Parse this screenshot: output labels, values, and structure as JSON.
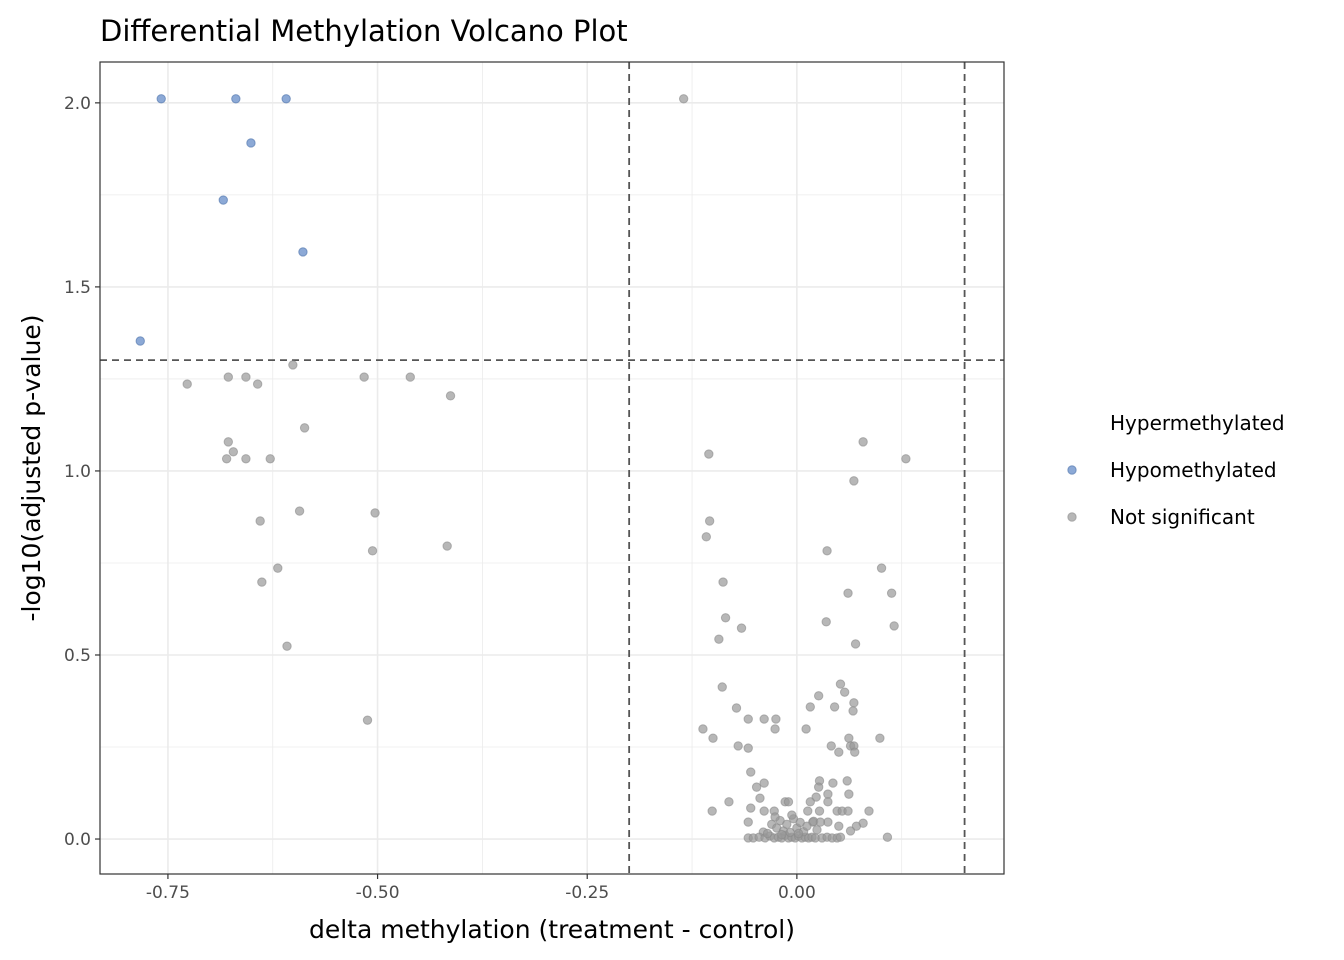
{
  "chart_data": {
    "type": "scatter",
    "title": "Differential Methylation Volcano Plot",
    "xlabel": "delta methylation (treatment - control)",
    "ylabel": "-log10(adjusted p-value)",
    "xlim": [
      -0.831,
      0.247
    ],
    "ylim": [
      -0.095,
      2.111
    ],
    "xticks": [
      -0.75,
      -0.5,
      -0.25,
      0.0
    ],
    "xtick_labels": [
      "-0.75",
      "-0.50",
      "-0.25",
      "0.00"
    ],
    "yticks": [
      0.0,
      0.5,
      1.0,
      1.5,
      2.0
    ],
    "ytick_labels": [
      "0.0",
      "0.5",
      "1.0",
      "1.5",
      "2.0"
    ],
    "grid": true,
    "legend_placement": "right",
    "thresholds": {
      "vlines": [
        -0.2,
        0.2
      ],
      "hline": 1.301
    },
    "series": [
      {
        "name": "Hypermethylated",
        "color": "#d6604d",
        "points": []
      },
      {
        "name": "Hypomethylated",
        "color": "#5b84c4",
        "points": [
          [
            -0.758,
            2.011
          ],
          [
            -0.669,
            2.011
          ],
          [
            -0.609,
            2.011
          ],
          [
            -0.651,
            1.891
          ],
          [
            -0.684,
            1.736
          ],
          [
            -0.589,
            1.595
          ],
          [
            -0.783,
            1.353
          ]
        ]
      },
      {
        "name": "Not significant",
        "color": "#999999",
        "points": [
          [
            -0.135,
            2.011
          ],
          [
            -0.727,
            1.236
          ],
          [
            -0.678,
            1.255
          ],
          [
            -0.657,
            1.255
          ],
          [
            -0.643,
            1.236
          ],
          [
            -0.601,
            1.288
          ],
          [
            -0.516,
            1.255
          ],
          [
            -0.461,
            1.255
          ],
          [
            -0.413,
            1.204
          ],
          [
            -0.587,
            1.117
          ],
          [
            -0.678,
            1.079
          ],
          [
            -0.672,
            1.052
          ],
          [
            -0.68,
            1.033
          ],
          [
            -0.657,
            1.033
          ],
          [
            -0.628,
            1.033
          ],
          [
            -0.64,
            0.864
          ],
          [
            -0.593,
            0.891
          ],
          [
            -0.503,
            0.886
          ],
          [
            -0.506,
            0.783
          ],
          [
            -0.417,
            0.796
          ],
          [
            -0.619,
            0.736
          ],
          [
            -0.638,
            0.698
          ],
          [
            -0.608,
            0.524
          ],
          [
            -0.512,
            0.323
          ],
          [
            -0.105,
            1.046
          ],
          [
            -0.104,
            0.864
          ],
          [
            -0.108,
            0.821
          ],
          [
            -0.088,
            0.698
          ],
          [
            -0.085,
            0.601
          ],
          [
            -0.093,
            0.543
          ],
          [
            -0.066,
            0.573
          ],
          [
            0.079,
            1.079
          ],
          [
            0.13,
            1.033
          ],
          [
            0.068,
            0.973
          ],
          [
            0.036,
            0.783
          ],
          [
            0.101,
            0.736
          ],
          [
            0.061,
            0.668
          ],
          [
            0.113,
            0.668
          ],
          [
            0.035,
            0.59
          ],
          [
            0.116,
            0.579
          ],
          [
            0.07,
            0.53
          ],
          [
            -0.089,
            0.413
          ],
          [
            -0.072,
            0.356
          ],
          [
            -0.058,
            0.326
          ],
          [
            -0.039,
            0.326
          ],
          [
            -0.025,
            0.326
          ],
          [
            -0.026,
            0.299
          ],
          [
            -0.112,
            0.299
          ],
          [
            -0.1,
            0.274
          ],
          [
            -0.07,
            0.253
          ],
          [
            -0.058,
            0.247
          ],
          [
            -0.055,
            0.182
          ],
          [
            -0.048,
            0.141
          ],
          [
            -0.039,
            0.152
          ],
          [
            -0.044,
            0.111
          ],
          [
            -0.081,
            0.101
          ],
          [
            -0.101,
            0.076
          ],
          [
            -0.055,
            0.084
          ],
          [
            -0.039,
            0.076
          ],
          [
            -0.027,
            0.076
          ],
          [
            -0.014,
            0.101
          ],
          [
            -0.01,
            0.101
          ],
          [
            -0.058,
            0.046
          ],
          [
            -0.04,
            0.019
          ],
          [
            0.052,
            0.421
          ],
          [
            0.057,
            0.399
          ],
          [
            0.026,
            0.389
          ],
          [
            0.068,
            0.37
          ],
          [
            0.067,
            0.348
          ],
          [
            0.016,
            0.359
          ],
          [
            0.045,
            0.359
          ],
          [
            0.011,
            0.299
          ],
          [
            0.099,
            0.274
          ],
          [
            0.062,
            0.274
          ],
          [
            0.041,
            0.253
          ],
          [
            0.05,
            0.236
          ],
          [
            0.064,
            0.253
          ],
          [
            0.068,
            0.253
          ],
          [
            0.069,
            0.236
          ],
          [
            0.027,
            0.158
          ],
          [
            0.026,
            0.141
          ],
          [
            0.043,
            0.152
          ],
          [
            0.06,
            0.158
          ],
          [
            0.023,
            0.114
          ],
          [
            0.037,
            0.122
          ],
          [
            0.062,
            0.122
          ],
          [
            0.037,
            0.101
          ],
          [
            0.016,
            0.101
          ],
          [
            0.013,
            0.076
          ],
          [
            0.027,
            0.076
          ],
          [
            0.048,
            0.076
          ],
          [
            0.054,
            0.076
          ],
          [
            0.061,
            0.076
          ],
          [
            0.086,
            0.076
          ],
          [
            0.019,
            0.046
          ],
          [
            0.037,
            0.046
          ],
          [
            0.05,
            0.035
          ],
          [
            0.079,
            0.043
          ],
          [
            0.071,
            0.035
          ],
          [
            0.064,
            0.022
          ],
          [
            0.108,
            0.005
          ],
          [
            -0.058,
            0.003
          ],
          [
            -0.052,
            0.003
          ],
          [
            -0.045,
            0.005
          ],
          [
            -0.038,
            0.003
          ],
          [
            -0.032,
            0.008
          ],
          [
            -0.027,
            0.003
          ],
          [
            -0.022,
            0.005
          ],
          [
            -0.018,
            0.003
          ],
          [
            -0.014,
            0.01
          ],
          [
            -0.01,
            0.003
          ],
          [
            -0.006,
            0.005
          ],
          [
            -0.002,
            0.003
          ],
          [
            0.002,
            0.008
          ],
          [
            0.006,
            0.003
          ],
          [
            0.01,
            0.005
          ],
          [
            0.014,
            0.003
          ],
          [
            0.018,
            0.005
          ],
          [
            0.022,
            0.003
          ],
          [
            0.03,
            0.003
          ],
          [
            0.036,
            0.005
          ],
          [
            0.042,
            0.003
          ],
          [
            0.048,
            0.003
          ],
          [
            0.052,
            0.005
          ],
          [
            -0.03,
            0.04
          ],
          [
            -0.024,
            0.03
          ],
          [
            -0.02,
            0.05
          ],
          [
            -0.016,
            0.022
          ],
          [
            -0.012,
            0.04
          ],
          [
            -0.008,
            0.018
          ],
          [
            -0.004,
            0.055
          ],
          [
            0.0,
            0.03
          ],
          [
            0.004,
            0.045
          ],
          [
            0.008,
            0.02
          ],
          [
            0.012,
            0.035
          ],
          [
            0.02,
            0.048
          ],
          [
            0.024,
            0.025
          ],
          [
            -0.035,
            0.015
          ],
          [
            -0.026,
            0.06
          ],
          [
            -0.006,
            0.065
          ],
          [
            0.002,
            0.015
          ],
          [
            -0.018,
            0.012
          ],
          [
            0.028,
            0.046
          ]
        ]
      }
    ]
  }
}
